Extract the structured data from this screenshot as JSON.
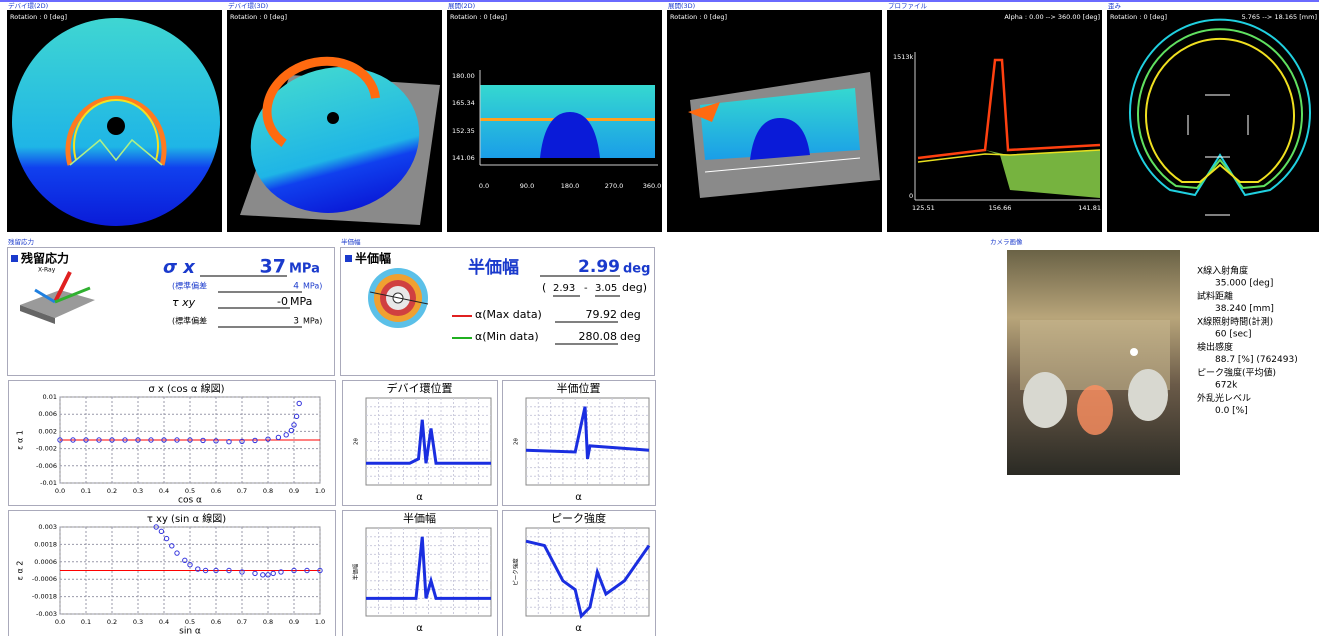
{
  "top_panels": [
    {
      "label": "デバイ環(2D)",
      "info": [
        "Rotation : 0 [deg]"
      ]
    },
    {
      "label": "デバイ環(3D)",
      "info": [
        "Rotation : 0 [deg]"
      ]
    },
    {
      "label": "展開(2D)",
      "info": [
        "Rotation : 0 [deg]"
      ]
    },
    {
      "label": "展開(3D)",
      "info": [
        "Rotation : 0 [deg]"
      ]
    },
    {
      "label": "プロファイル",
      "info": [
        "Alpha : 0.00 --> 360.00 [deg]"
      ]
    },
    {
      "label": "歪み",
      "info": [
        "Rotation : 0 [deg]",
        "5.765 --> 18.165 [mm]"
      ]
    }
  ],
  "unwrap_axis": {
    "y": [
      "180.00",
      "165.34",
      "152.35",
      "141.06"
    ],
    "x": [
      "0.0",
      "90.0",
      "180.0",
      "270.0",
      "360.0"
    ]
  },
  "profile_axis": {
    "y": [
      "1513k",
      "0"
    ],
    "x": [
      "125.51",
      "156.66",
      "141.81"
    ]
  },
  "residual": {
    "section_label": "残留応力",
    "heading": "残留応力",
    "icon_label": "X-Ray",
    "sigma_label": "σ x",
    "sigma_value": "37",
    "sigma_unit": "MPa",
    "sigma_sd_label": "(標準偏差",
    "sigma_sd_value": "4",
    "sigma_sd_unit": "MPa)",
    "tau_label": "τ xy",
    "tau_value": "-0",
    "tau_unit": "MPa",
    "tau_sd_label": "(標準偏差",
    "tau_sd_value": "3",
    "tau_sd_unit": "MPa)"
  },
  "half_width": {
    "section_label": "半価幅",
    "heading": "半価幅",
    "value_label": "半価幅",
    "value": "2.99",
    "unit": "deg",
    "range_open": "(",
    "range_min": "2.93",
    "range_sep": "-",
    "range_max": "3.05",
    "range_close": "deg)",
    "max_label": "α(Max data)",
    "max_value": "79.92",
    "max_unit": "deg",
    "min_label": "α(Min data)",
    "min_value": "280.08",
    "min_unit": "deg",
    "small_charts": [
      {
        "title": "デバイ環位置",
        "ylabel": "2θ",
        "xlabel": "α"
      },
      {
        "title": "半価位置",
        "ylabel": "2θ",
        "xlabel": "α"
      },
      {
        "title": "半価幅",
        "ylabel": "半価幅",
        "xlabel": "α"
      },
      {
        "title": "ピーク強度",
        "ylabel": "ピーク強度",
        "xlabel": "α"
      }
    ]
  },
  "camera": {
    "section_label": "カメラ画像",
    "items": [
      {
        "label": "X線入射角度",
        "value": "35.000 [deg]"
      },
      {
        "label": "試料距離",
        "value": "38.240 [mm]"
      },
      {
        "label": "X線照射時間(計測)",
        "value": "60 [sec]"
      },
      {
        "label": "検出感度",
        "value": "88.7 [%] (762493)"
      },
      {
        "label": "ピーク強度(平均値)",
        "value": "672k"
      },
      {
        "label": "外乱光レベル",
        "value": "0.0 [%]"
      }
    ]
  },
  "chart_data": [
    {
      "type": "scatter",
      "title": "σ x (cos α 線図)",
      "x_label": "cos α",
      "y_label": "ε α 1",
      "color": "#3333dd",
      "x": [
        0.0,
        0.05,
        0.1,
        0.15,
        0.2,
        0.25,
        0.3,
        0.35,
        0.4,
        0.45,
        0.5,
        0.55,
        0.6,
        0.65,
        0.7,
        0.75,
        0.8,
        0.84,
        0.87,
        0.89,
        0.9,
        0.91,
        0.92
      ],
      "y": [
        0,
        0,
        0,
        0,
        0,
        0,
        0,
        0,
        0,
        0,
        0,
        -0.0001,
        -0.0002,
        -0.0004,
        -0.0003,
        -0.0001,
        0.0002,
        0.0006,
        0.0012,
        0.0022,
        0.0035,
        0.0055,
        0.0085
      ],
      "fit": {
        "color": "#ff0000",
        "x": [
          0,
          1
        ],
        "y": [
          0,
          0
        ]
      },
      "xlim": [
        0,
        1
      ],
      "ylim": [
        -0.01,
        0.01
      ],
      "xticks": [
        {
          "value": 0,
          "label": "0.0"
        },
        0.1,
        0.2,
        0.3,
        0.4,
        0.5,
        0.6,
        0.7,
        0.8,
        0.9,
        {
          "value": 1,
          "label": "1.0"
        }
      ],
      "yticks": [
        0.01,
        0.006,
        0.002,
        -0.002,
        -0.006,
        -0.01
      ],
      "grid": true
    },
    {
      "type": "scatter",
      "title": "τ xy (sin α 線図)",
      "x_label": "sin α",
      "y_label": "ε α 2",
      "color": "#3333dd",
      "x": [
        0.37,
        0.39,
        0.41,
        0.43,
        0.45,
        0.48,
        0.5,
        0.53,
        0.56,
        0.6,
        0.65,
        0.7,
        0.75,
        0.78,
        0.8,
        0.82,
        0.85,
        0.9,
        0.95,
        1.0
      ],
      "y": [
        0.003,
        0.0027,
        0.0022,
        0.0017,
        0.0012,
        0.0007,
        0.0004,
        0.0001,
        0,
        0,
        0,
        -0.0001,
        -0.0002,
        -0.0003,
        -0.0003,
        -0.0002,
        -0.0001,
        0,
        0,
        0
      ],
      "fit": {
        "color": "#ff0000",
        "x": [
          0,
          1
        ],
        "y": [
          0,
          0
        ]
      },
      "xlim": [
        0,
        1
      ],
      "ylim": [
        -0.003,
        0.003
      ],
      "xticks": [
        {
          "value": 0,
          "label": "0.0"
        },
        0.1,
        0.2,
        0.3,
        0.4,
        0.5,
        0.6,
        0.7,
        0.8,
        0.9,
        {
          "value": 1,
          "label": "1.0"
        }
      ],
      "yticks": [
        0.003,
        0.0018,
        0.0006,
        -0.0006,
        -0.0018,
        -0.003
      ],
      "grid": true
    }
  ]
}
